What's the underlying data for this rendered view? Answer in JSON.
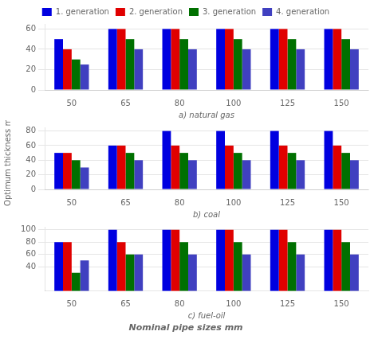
{
  "chart_data": [
    {
      "type": "bar",
      "xlabel": "a) natural gas",
      "categories": [
        50,
        65,
        80,
        100,
        125,
        150
      ],
      "series": [
        {
          "name": "1. generation",
          "color": "#0000e0",
          "values": [
            50,
            60,
            60,
            60,
            60,
            60
          ]
        },
        {
          "name": "2. generation",
          "color": "#e00000",
          "values": [
            40,
            60,
            60,
            60,
            60,
            60
          ]
        },
        {
          "name": "3. generation",
          "color": "#007000",
          "values": [
            30,
            50,
            50,
            50,
            50,
            50
          ]
        },
        {
          "name": "4. generation",
          "color": "#4040c0",
          "values": [
            25,
            40,
            40,
            40,
            40,
            40
          ]
        }
      ],
      "ylim": [
        0,
        65
      ],
      "yticks": [
        0,
        20,
        40,
        60
      ],
      "grid": true,
      "legend": "top"
    },
    {
      "type": "bar",
      "xlabel": "b) coal",
      "ylabel": "Optimum thickness mm",
      "categories": [
        50,
        65,
        80,
        100,
        125,
        150
      ],
      "series": [
        {
          "name": "1. generation",
          "color": "#0000e0",
          "values": [
            50,
            60,
            80,
            80,
            80,
            80
          ]
        },
        {
          "name": "2. generation",
          "color": "#e00000",
          "values": [
            50,
            60,
            60,
            60,
            60,
            60
          ]
        },
        {
          "name": "3. generation",
          "color": "#007000",
          "values": [
            40,
            50,
            50,
            50,
            50,
            50
          ]
        },
        {
          "name": "4. generation",
          "color": "#4040c0",
          "values": [
            30,
            40,
            40,
            40,
            40,
            40
          ]
        }
      ],
      "ylim": [
        0,
        85
      ],
      "yticks": [
        0,
        20,
        40,
        60,
        80
      ],
      "grid": true
    },
    {
      "type": "bar",
      "xlabel": "c) fuel-oil",
      "categories": [
        50,
        65,
        80,
        100,
        125,
        150
      ],
      "series": [
        {
          "name": "1. generation",
          "color": "#0000e0",
          "values": [
            80,
            100,
            100,
            100,
            100,
            100
          ]
        },
        {
          "name": "2. generation",
          "color": "#e00000",
          "values": [
            80,
            80,
            100,
            100,
            100,
            100
          ]
        },
        {
          "name": "3. generation",
          "color": "#007000",
          "values": [
            30,
            60,
            80,
            80,
            80,
            80
          ]
        },
        {
          "name": "4. generation",
          "color": "#4040c0",
          "values": [
            50,
            60,
            60,
            60,
            60,
            60
          ]
        }
      ],
      "ylim": [
        0,
        105
      ],
      "yticks": [
        40,
        60,
        80,
        100
      ],
      "grid": true,
      "annotations": [
        "Nominal pipe sizes mm"
      ]
    }
  ]
}
